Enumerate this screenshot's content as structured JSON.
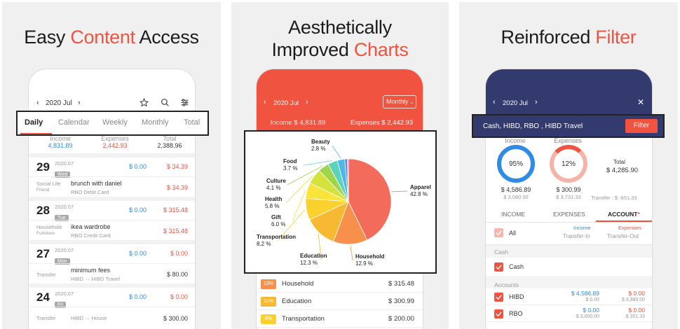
{
  "panel1": {
    "headline_pre": "Easy ",
    "headline_hl": "Content",
    "headline_post": " Access",
    "month": "2020 Jul",
    "tabs": [
      "Daily",
      "Calendar",
      "Weekly",
      "Monthly",
      "Total"
    ],
    "summary": {
      "income_label": "Income",
      "income_value": "4,831.89",
      "expenses_label": "Expenses",
      "expenses_value": "2,442.93",
      "total_label": "Total",
      "total_value": "2,388.96"
    },
    "days": [
      {
        "day": "29",
        "month": "2020.07",
        "weekday": "Wed",
        "inc": "$ 0.00",
        "exp": "$ 34.39",
        "category": "Social Life",
        "subcategory": "Friend",
        "desc": "brunch with daniel",
        "account": "RBO Debit Card",
        "amount": "$ 34.39"
      },
      {
        "day": "28",
        "month": "2020.07",
        "weekday": "Tue",
        "inc": "$ 0.00",
        "exp": "$ 315.48",
        "category": "Household",
        "subcategory": "Furniture",
        "desc": "ikea wardrobe",
        "account": "RBO Credit Card",
        "amount": "$ 315.48"
      },
      {
        "day": "27",
        "month": "2020.07",
        "weekday": "Mon",
        "inc": "$ 0.00",
        "exp": "$ 0.00",
        "category": "Transfer",
        "subcategory": "",
        "desc": "minimum fees",
        "account": "HIBD → HIBD Travel",
        "amount": "$ 80.00"
      },
      {
        "day": "24",
        "month": "2020.07",
        "weekday": "Fri",
        "inc": "$ 0.00",
        "exp": "$ 0.00",
        "category": "Transfer",
        "subcategory": "",
        "desc": "",
        "account": "HIBD → House",
        "amount": "$ 300.00"
      }
    ]
  },
  "panel2": {
    "headline_line1": "Aesthetically",
    "headline_pre": "Improved ",
    "headline_hl": "Charts",
    "month": "2020 Jul",
    "period": "Monthly",
    "income": "Income  $ 4,831.89",
    "expenses": "Expenses  $ 2,442.93",
    "chart_data": {
      "type": "pie",
      "slices": [
        {
          "label": "Apparel",
          "value": 42.8,
          "text": "42.8 %",
          "color": "#f26b5b"
        },
        {
          "label": "Household",
          "value": 12.9,
          "text": "12.9 %",
          "color": "#f7904a"
        },
        {
          "label": "Education",
          "value": 12.3,
          "text": "12.3 %",
          "color": "#f8b932"
        },
        {
          "label": "Transportation",
          "value": 8.2,
          "text": "8.2 %",
          "color": "#fbd12e"
        },
        {
          "label": "Gift",
          "value": 6.0,
          "text": "6.0 %",
          "color": "#f8e43a"
        },
        {
          "label": "Health",
          "value": 5.8,
          "text": "5.8 %",
          "color": "#d5e23c"
        },
        {
          "label": "Culture",
          "value": 4.1,
          "text": "4.1 %",
          "color": "#9ed54c"
        },
        {
          "label": "Food",
          "value": 3.7,
          "text": "3.7 %",
          "color": "#5ed3bb"
        },
        {
          "label": "Beauty",
          "value": 2.8,
          "text": "2.8 %",
          "color": "#4cb8e6"
        },
        {
          "label": "",
          "value": 1.0,
          "text": "",
          "color": "#6c7ee0"
        },
        {
          "label": "",
          "value": 0.4,
          "text": "",
          "color": "#b77ee0"
        }
      ]
    },
    "list": [
      {
        "pct": "13%",
        "name": "Household",
        "amount": "$ 315.48",
        "color": "#f7904a"
      },
      {
        "pct": "12%",
        "name": "Education",
        "amount": "$ 300.99",
        "color": "#f8b932"
      },
      {
        "pct": "8%",
        "name": "Transportation",
        "amount": "$ 200.00",
        "color": "#fbd12e"
      }
    ]
  },
  "panel3": {
    "headline_pre": "Reinforced ",
    "headline_hl": "Filter",
    "month": "2020 Jul",
    "filter_text": "Cash, HIBD, RBO , HIBD Travel",
    "filter_button": "Filter",
    "income_label": "Income",
    "income_pct": "95%",
    "income_pct_value": 95,
    "income_value": "$ 4,586.89",
    "income_sub": "$ 3,080.00",
    "expenses_label": "Expenses",
    "expenses_pct": "12%",
    "expenses_pct_value": 12,
    "expenses_value": "$ 300.99",
    "expenses_sub": "$ 3,731.33",
    "total_label": "Total",
    "total_value": "$ 4,285.90",
    "transfer_text": "Transfer : $ -651.33",
    "tabs": [
      "INCOME",
      "EXPENSES",
      "ACCOUNT"
    ],
    "tab_star": "*",
    "all_label": "All",
    "col_income": "Income",
    "col_transfer_in": "Transfer-In",
    "col_expenses": "Expenses",
    "col_transfer_out": "Transfer-Out",
    "section_cash": "Cash",
    "cash_label": "Cash",
    "section_accounts": "Accounts",
    "accounts": [
      {
        "name": "HIBD",
        "inc": "$ 4,586.89",
        "inc_sub": "$ 0.00",
        "exp": "$ 0.00",
        "exp_sub": "$ 3,380.00"
      },
      {
        "name": "RBO",
        "inc": "$ 0.00",
        "inc_sub": "$ 3,000.00",
        "exp": "$ 0.00",
        "exp_sub": "$ 351.33"
      }
    ]
  },
  "colors": {
    "accent": "#f0533f",
    "blue": "#2f8be3",
    "navy": "#333a6e"
  }
}
